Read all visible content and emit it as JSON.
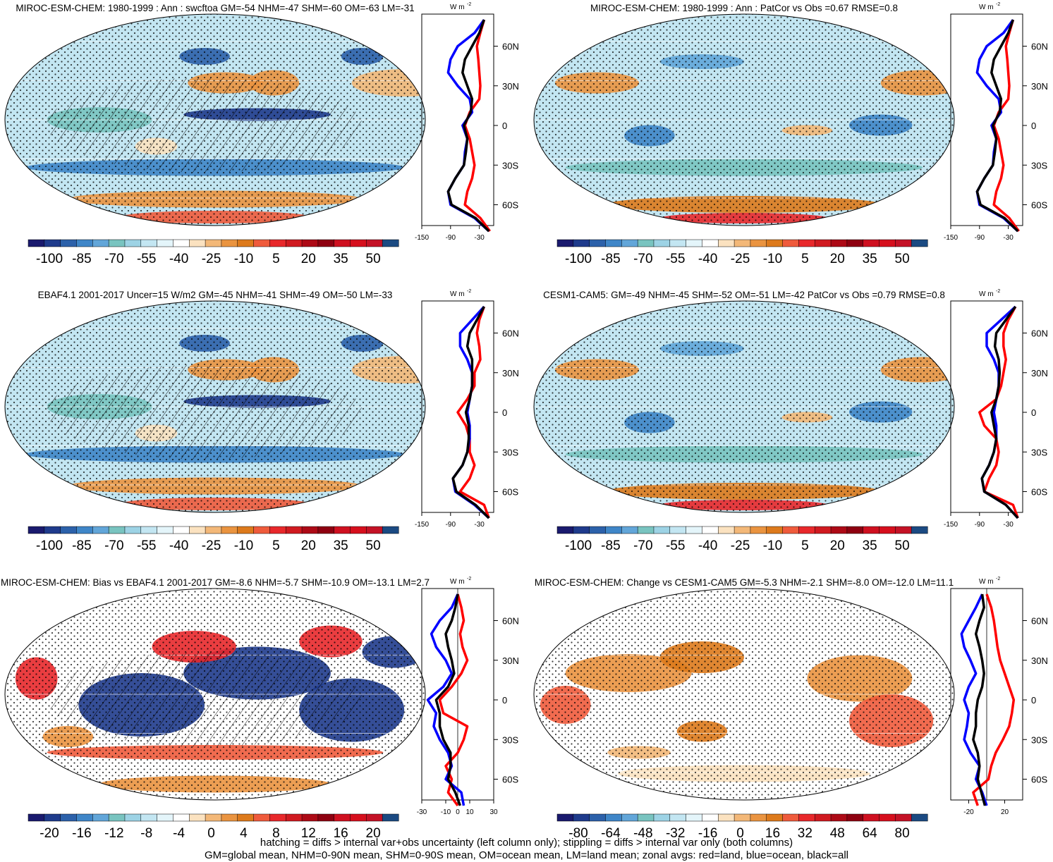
{
  "footnote": {
    "line1": "hatching = diffs > internal var+obs uncertainty (left column only); stippling = diffs > internal var only (both columns)",
    "line2": "GM=global mean, NHM=0-90N mean, SHM=0-90S mean, OM=ocean mean, LM=land mean; zonal avgs: red=land, blue=ocean, black=all"
  },
  "colors": {
    "land": "#ff0000",
    "ocean": "#0000ff",
    "all": "#000000",
    "swcf_scale": [
      "#1a1a6e",
      "#1f3b8c",
      "#2c61aa",
      "#3f86c8",
      "#62a6d9",
      "#79c4c0",
      "#9dd3e5",
      "#c3e6f2",
      "#e4f5fa",
      "#ffffff",
      "#fbe2c0",
      "#f3b878",
      "#ea9440",
      "#dd7a1c",
      "#ef5b3c",
      "#e8282b",
      "#d01a20",
      "#ad0a16",
      "#8e0010",
      "#cf1020",
      "#d60f1d",
      "#c41226",
      "#1b4a82"
    ],
    "bias_scale": [
      "#1a1a6e",
      "#1f3b8c",
      "#2c61aa",
      "#3f86c8",
      "#62a6d9",
      "#79c4c0",
      "#9dd3e5",
      "#c3e6f2",
      "#e4f5fa",
      "#ffffff",
      "#fbe2c0",
      "#f3b878",
      "#ea9440",
      "#dd7a1c",
      "#ef5b3c",
      "#e8282b",
      "#d01a20",
      "#ad0a16",
      "#8e0010",
      "#cf1020",
      "#d60f1d",
      "#c41226",
      "#1b4a82"
    ]
  },
  "chart_data": [
    {
      "type": "map",
      "panel": "top-left",
      "title": "MIROC-ESM-CHEM: 1980-1999 : Ann : swcftoa GM=-54 NHM=-47 SHM=-60 OM=-63 LM=-31",
      "colorbar_labels": [
        "-100",
        "-85",
        "-70",
        "-55",
        "-40",
        "-25",
        "-10",
        "5",
        "20",
        "35",
        "50"
      ],
      "hatching": true,
      "stippling": true,
      "zonal_profile": {
        "unit_label": "W m",
        "unit_sup": "-2",
        "x_ticks": [
          "-150",
          "-90",
          "-30"
        ],
        "xlim": [
          -150,
          0
        ],
        "y_ticks": [
          "60N",
          "30N",
          "0",
          "30S",
          "60S"
        ],
        "lat_values": [
          80,
          70,
          60,
          50,
          40,
          30,
          20,
          10,
          0,
          -10,
          -20,
          -30,
          -40,
          -50,
          -60,
          -70,
          -80
        ],
        "series": [
          {
            "name": "land",
            "values": [
              -20,
              -28,
              -35,
              -32,
              -30,
              -28,
              -30,
              -50,
              -60,
              -50,
              -45,
              -40,
              -45,
              -55,
              -60,
              -28,
              -8
            ]
          },
          {
            "name": "ocean",
            "values": [
              -20,
              -40,
              -75,
              -90,
              -95,
              -75,
              -50,
              -45,
              -65,
              -55,
              -60,
              -62,
              -80,
              -95,
              -90,
              -40,
              -10
            ]
          },
          {
            "name": "all",
            "values": [
              -20,
              -30,
              -45,
              -60,
              -65,
              -55,
              -45,
              -48,
              -62,
              -55,
              -58,
              -62,
              -80,
              -95,
              -88,
              -38,
              -10
            ]
          }
        ]
      }
    },
    {
      "type": "map",
      "panel": "top-right",
      "title": "MIROC-ESM-CHEM: 1980-1999 : Ann : PatCor vs Obs =0.67 RMSE=0.8",
      "colorbar_labels": [
        "-100",
        "-85",
        "-70",
        "-55",
        "-40",
        "-25",
        "-10",
        "5",
        "20",
        "35",
        "50"
      ],
      "hatching": false,
      "stippling": true,
      "zonal_profile": {
        "unit_label": "W m",
        "unit_sup": "-2",
        "x_ticks": [
          "-150",
          "-90",
          "-30"
        ],
        "xlim": [
          -150,
          0
        ],
        "y_ticks": [
          "60N",
          "30N",
          "0",
          "30S",
          "60S"
        ],
        "lat_values": [
          80,
          70,
          60,
          50,
          40,
          30,
          20,
          10,
          0,
          -10,
          -20,
          -30,
          -40,
          -50,
          -60,
          -70,
          -80
        ],
        "series": [
          {
            "name": "land",
            "values": [
              -20,
              -28,
              -35,
              -32,
              -30,
              -28,
              -30,
              -50,
              -60,
              -50,
              -45,
              -40,
              -45,
              -55,
              -60,
              -28,
              -8
            ]
          },
          {
            "name": "ocean",
            "values": [
              -20,
              -40,
              -75,
              -90,
              -95,
              -75,
              -50,
              -45,
              -65,
              -55,
              -60,
              -62,
              -80,
              -95,
              -90,
              -40,
              -10
            ]
          },
          {
            "name": "all",
            "values": [
              -20,
              -30,
              -45,
              -60,
              -65,
              -55,
              -45,
              -48,
              -62,
              -55,
              -58,
              -62,
              -80,
              -95,
              -88,
              -38,
              -10
            ]
          }
        ]
      }
    },
    {
      "type": "map",
      "panel": "middle-left",
      "title": "EBAF4.1 2001-2017 Uncer=15 W/m2 GM=-45 NHM=-41 SHM=-49 OM=-50 LM=-33",
      "colorbar_labels": [
        "-100",
        "-85",
        "-70",
        "-55",
        "-40",
        "-25",
        "-10",
        "5",
        "20",
        "35",
        "50"
      ],
      "hatching": true,
      "stippling": true,
      "zonal_profile": {
        "unit_label": "W m",
        "unit_sup": "-2",
        "x_ticks": [
          "-150",
          "-90",
          "-30"
        ],
        "xlim": [
          -150,
          0
        ],
        "y_ticks": [
          "60N",
          "30N",
          "0",
          "30S",
          "60S"
        ],
        "lat_values": [
          80,
          70,
          60,
          50,
          40,
          30,
          20,
          10,
          0,
          -10,
          -20,
          -30,
          -40,
          -50,
          -60,
          -70,
          -80
        ],
        "series": [
          {
            "name": "land",
            "values": [
              -20,
              -30,
              -35,
              -30,
              -28,
              -40,
              -40,
              -55,
              -75,
              -58,
              -50,
              -50,
              -40,
              -50,
              -70,
              -20,
              -10
            ]
          },
          {
            "name": "ocean",
            "values": [
              -20,
              -45,
              -70,
              -70,
              -55,
              -45,
              -45,
              -50,
              -55,
              -50,
              -50,
              -55,
              -65,
              -85,
              -80,
              -40,
              -10
            ]
          },
          {
            "name": "all",
            "values": [
              -20,
              -35,
              -50,
              -55,
              -45,
              -45,
              -45,
              -50,
              -58,
              -52,
              -52,
              -55,
              -65,
              -85,
              -78,
              -38,
              -10
            ]
          }
        ]
      }
    },
    {
      "type": "map",
      "panel": "middle-right",
      "title": "CESM1-CAM5: GM=-49 NHM=-45 SHM=-52 OM=-51 LM=-42 PatCor vs Obs =0.79 RMSE=0.8",
      "colorbar_labels": [
        "-100",
        "-85",
        "-70",
        "-55",
        "-40",
        "-25",
        "-10",
        "5",
        "20",
        "35",
        "50"
      ],
      "hatching": false,
      "stippling": true,
      "zonal_profile": {
        "unit_label": "W m",
        "unit_sup": "-2",
        "x_ticks": [
          "-150",
          "-90",
          "-30"
        ],
        "xlim": [
          -150,
          0
        ],
        "y_ticks": [
          "60N",
          "30N",
          "0",
          "30S",
          "60S"
        ],
        "lat_values": [
          80,
          70,
          60,
          50,
          40,
          30,
          20,
          10,
          0,
          -10,
          -20,
          -30,
          -40,
          -50,
          -60,
          -70,
          -80
        ],
        "series": [
          {
            "name": "land",
            "values": [
              -15,
              -30,
              -40,
              -40,
              -35,
              -40,
              -45,
              -55,
              -90,
              -80,
              -55,
              -50,
              -55,
              -70,
              -80,
              -20,
              -10
            ]
          },
          {
            "name": "ocean",
            "values": [
              -15,
              -45,
              -75,
              -75,
              -60,
              -50,
              -50,
              -55,
              -60,
              -55,
              -55,
              -60,
              -70,
              -85,
              -80,
              -35,
              -10
            ]
          },
          {
            "name": "all",
            "values": [
              -15,
              -35,
              -55,
              -58,
              -50,
              -48,
              -50,
              -55,
              -65,
              -60,
              -55,
              -60,
              -70,
              -85,
              -80,
              -35,
              -10
            ]
          }
        ]
      }
    },
    {
      "type": "map",
      "panel": "bottom-left",
      "title": "MIROC-ESM-CHEM: Bias vs EBAF4.1 2001-2017 GM=-8.6 NHM=-5.7 SHM=-10.9 OM=-13.1 LM=2.7",
      "colorbar_labels": [
        "-20",
        "-16",
        "-12",
        "-8",
        "-4",
        "0",
        "4",
        "8",
        "12",
        "16",
        "20"
      ],
      "hatching": true,
      "stippling": true,
      "zonal_profile": {
        "unit_label": "W m",
        "unit_sup": "-2",
        "x_ticks": [
          "-30",
          "-10",
          "0",
          "10",
          "30"
        ],
        "xlim": [
          -30,
          30
        ],
        "y_ticks": [
          "60N",
          "30N",
          "0",
          "30S",
          "60S"
        ],
        "lat_values": [
          80,
          70,
          60,
          50,
          40,
          30,
          20,
          10,
          0,
          -10,
          -20,
          -30,
          -40,
          -50,
          -60,
          -70,
          -80
        ],
        "series": [
          {
            "name": "land",
            "values": [
              0,
              3,
              5,
              2,
              4,
              8,
              3,
              -5,
              -15,
              -12,
              8,
              5,
              0,
              -10,
              -5,
              -8,
              0
            ]
          },
          {
            "name": "ocean",
            "values": [
              0,
              -5,
              -15,
              -22,
              -18,
              -10,
              -5,
              -12,
              -25,
              -18,
              -20,
              -15,
              -8,
              -5,
              -10,
              3,
              5
            ]
          },
          {
            "name": "all",
            "values": [
              0,
              -2,
              -5,
              -10,
              -8,
              -5,
              -3,
              -8,
              -18,
              -15,
              -15,
              -12,
              -6,
              -6,
              -8,
              -2,
              2
            ]
          }
        ]
      }
    },
    {
      "type": "map",
      "panel": "bottom-right",
      "title": "MIROC-ESM-CHEM: Change vs CESM1-CAM5 GM=-5.3 NHM=-2.1 SHM=-8.0 OM=-12.0 LM=11.1",
      "colorbar_labels": [
        "-80",
        "-64",
        "-48",
        "-32",
        "-16",
        "0",
        "16",
        "32",
        "48",
        "64",
        "80"
      ],
      "hatching": false,
      "stippling": true,
      "zonal_profile": {
        "unit_label": "W m",
        "unit_sup": "-2",
        "x_ticks": [
          "-20",
          "20"
        ],
        "xlim": [
          -40,
          40
        ],
        "y_ticks": [
          "60N",
          "30N",
          "0",
          "30S",
          "60S"
        ],
        "lat_values": [
          80,
          70,
          60,
          50,
          40,
          30,
          20,
          10,
          0,
          -10,
          -20,
          -30,
          -40,
          -50,
          -60,
          -70,
          -80
        ],
        "series": [
          {
            "name": "land",
            "values": [
              0,
              5,
              8,
              10,
              12,
              15,
              20,
              25,
              30,
              28,
              25,
              18,
              10,
              5,
              2,
              -15,
              -10
            ]
          },
          {
            "name": "ocean",
            "values": [
              -5,
              -12,
              -20,
              -28,
              -25,
              -18,
              -12,
              -20,
              -25,
              -20,
              -22,
              -25,
              -18,
              -8,
              -12,
              -5,
              0
            ]
          },
          {
            "name": "all",
            "values": [
              -5,
              -3,
              -8,
              -12,
              -8,
              -5,
              -3,
              -5,
              -10,
              -12,
              -12,
              -15,
              -10,
              -8,
              -10,
              -6,
              -2
            ]
          }
        ]
      }
    }
  ]
}
